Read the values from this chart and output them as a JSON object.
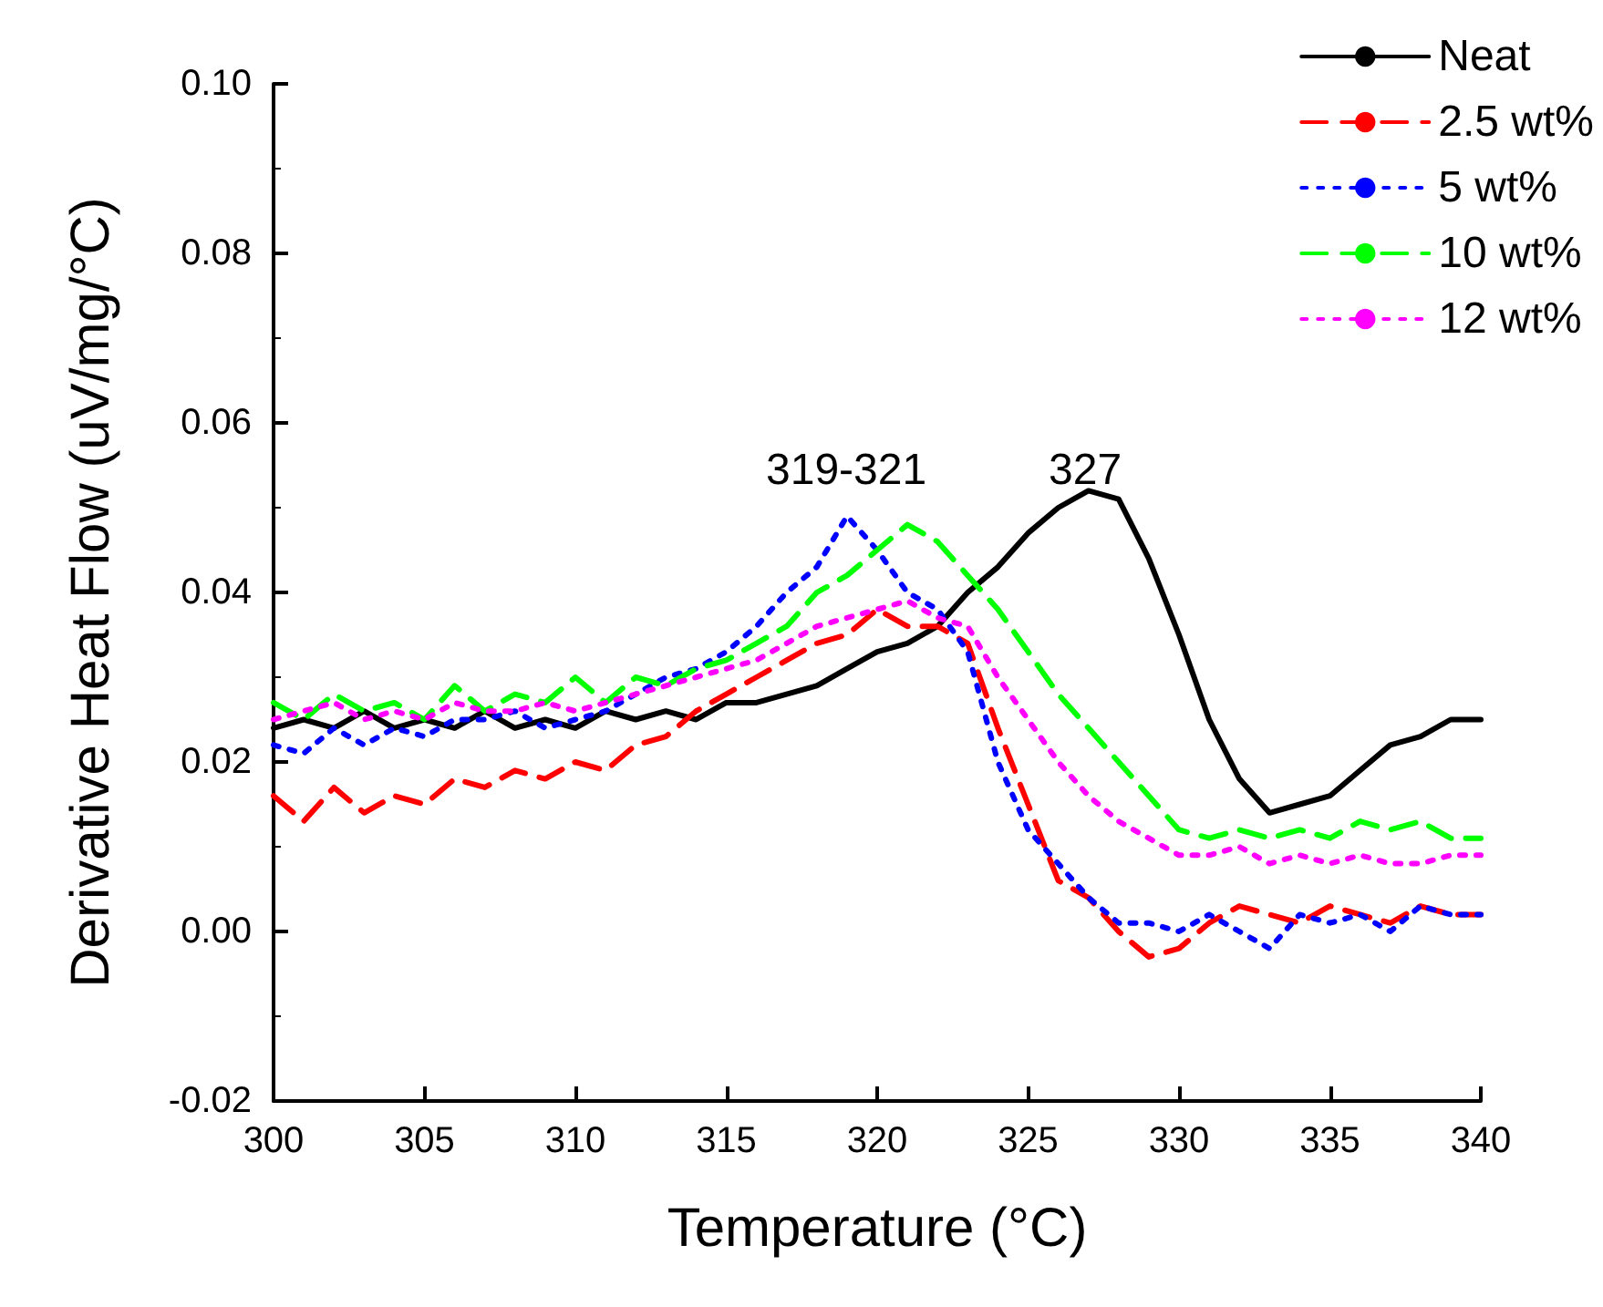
{
  "chart_data": {
    "type": "line",
    "xlabel": "Temperature (°C)",
    "ylabel": "Derivative Heat Flow (uV/mg/°C)",
    "x": [
      300,
      301,
      302,
      303,
      304,
      305,
      306,
      307,
      308,
      309,
      310,
      311,
      312,
      313,
      314,
      315,
      316,
      317,
      318,
      319,
      320,
      321,
      322,
      323,
      324,
      325,
      326,
      327,
      328,
      329,
      330,
      331,
      332,
      333,
      334,
      335,
      336,
      337,
      338,
      339,
      340
    ],
    "series": [
      {
        "name": "Neat",
        "color": "#000000",
        "line_style": "solid",
        "values": [
          0.024,
          0.025,
          0.024,
          0.026,
          0.024,
          0.025,
          0.024,
          0.026,
          0.024,
          0.025,
          0.024,
          0.026,
          0.025,
          0.026,
          0.025,
          0.027,
          0.027,
          0.028,
          0.029,
          0.031,
          0.033,
          0.034,
          0.036,
          0.04,
          0.043,
          0.047,
          0.05,
          0.052,
          0.051,
          0.044,
          0.035,
          0.025,
          0.018,
          0.014,
          0.015,
          0.016,
          0.019,
          0.022,
          0.023,
          0.025,
          0.025
        ]
      },
      {
        "name": "2.5 wt%",
        "color": "#ff0000",
        "line_style": "dashed",
        "values": [
          0.016,
          0.013,
          0.017,
          0.014,
          0.016,
          0.015,
          0.018,
          0.017,
          0.019,
          0.018,
          0.02,
          0.019,
          0.022,
          0.023,
          0.026,
          0.028,
          0.03,
          0.032,
          0.034,
          0.035,
          0.038,
          0.036,
          0.036,
          0.034,
          0.024,
          0.015,
          0.006,
          0.004,
          0.0,
          -0.003,
          -0.002,
          0.001,
          0.003,
          0.002,
          0.001,
          0.003,
          0.002,
          0.001,
          0.003,
          0.002,
          0.002
        ]
      },
      {
        "name": "5 wt%",
        "color": "#0000ff",
        "line_style": "dotted",
        "values": [
          0.022,
          0.021,
          0.024,
          0.022,
          0.024,
          0.023,
          0.025,
          0.025,
          0.026,
          0.024,
          0.025,
          0.026,
          0.028,
          0.03,
          0.031,
          0.033,
          0.036,
          0.04,
          0.043,
          0.049,
          0.045,
          0.04,
          0.038,
          0.033,
          0.02,
          0.012,
          0.008,
          0.004,
          0.001,
          0.001,
          0.0,
          0.002,
          0.0,
          -0.002,
          0.002,
          0.001,
          0.002,
          0.0,
          0.003,
          0.002,
          0.002
        ]
      },
      {
        "name": "10 wt%",
        "color": "#00ff00",
        "line_style": "dashed",
        "values": [
          0.027,
          0.025,
          0.028,
          0.026,
          0.027,
          0.025,
          0.029,
          0.026,
          0.028,
          0.027,
          0.03,
          0.027,
          0.03,
          0.029,
          0.031,
          0.032,
          0.034,
          0.036,
          0.04,
          0.042,
          0.045,
          0.048,
          0.046,
          0.042,
          0.038,
          0.033,
          0.028,
          0.024,
          0.02,
          0.016,
          0.012,
          0.011,
          0.012,
          0.011,
          0.012,
          0.011,
          0.013,
          0.012,
          0.013,
          0.011,
          0.011
        ]
      },
      {
        "name": "12 wt%",
        "color": "#ff00ff",
        "line_style": "dotted",
        "values": [
          0.025,
          0.026,
          0.027,
          0.025,
          0.026,
          0.025,
          0.027,
          0.026,
          0.026,
          0.027,
          0.026,
          0.027,
          0.028,
          0.029,
          0.03,
          0.031,
          0.032,
          0.034,
          0.036,
          0.037,
          0.038,
          0.039,
          0.037,
          0.036,
          0.03,
          0.025,
          0.02,
          0.016,
          0.013,
          0.011,
          0.009,
          0.009,
          0.01,
          0.008,
          0.009,
          0.008,
          0.009,
          0.008,
          0.008,
          0.009,
          0.009
        ]
      }
    ],
    "annotations": [
      "319-321",
      "327"
    ],
    "xlim": [
      300,
      340
    ],
    "xticks": [
      300,
      305,
      310,
      315,
      320,
      325,
      330,
      335,
      340
    ],
    "ylim": [
      -0.02,
      0.1
    ],
    "yticks": [
      {
        "value": -0.02,
        "label": "-0.02"
      },
      {
        "value": 0,
        "label": "0.00"
      },
      {
        "value": 0.02,
        "label": "0.02"
      },
      {
        "value": 0.04,
        "label": "0.04"
      },
      {
        "value": 0.06,
        "label": "0.06"
      },
      {
        "value": 0.08,
        "label": "0.08"
      },
      {
        "value": 0.1,
        "label": "0.10"
      }
    ],
    "grid": false,
    "legend": "top right",
    "marker": "none"
  }
}
